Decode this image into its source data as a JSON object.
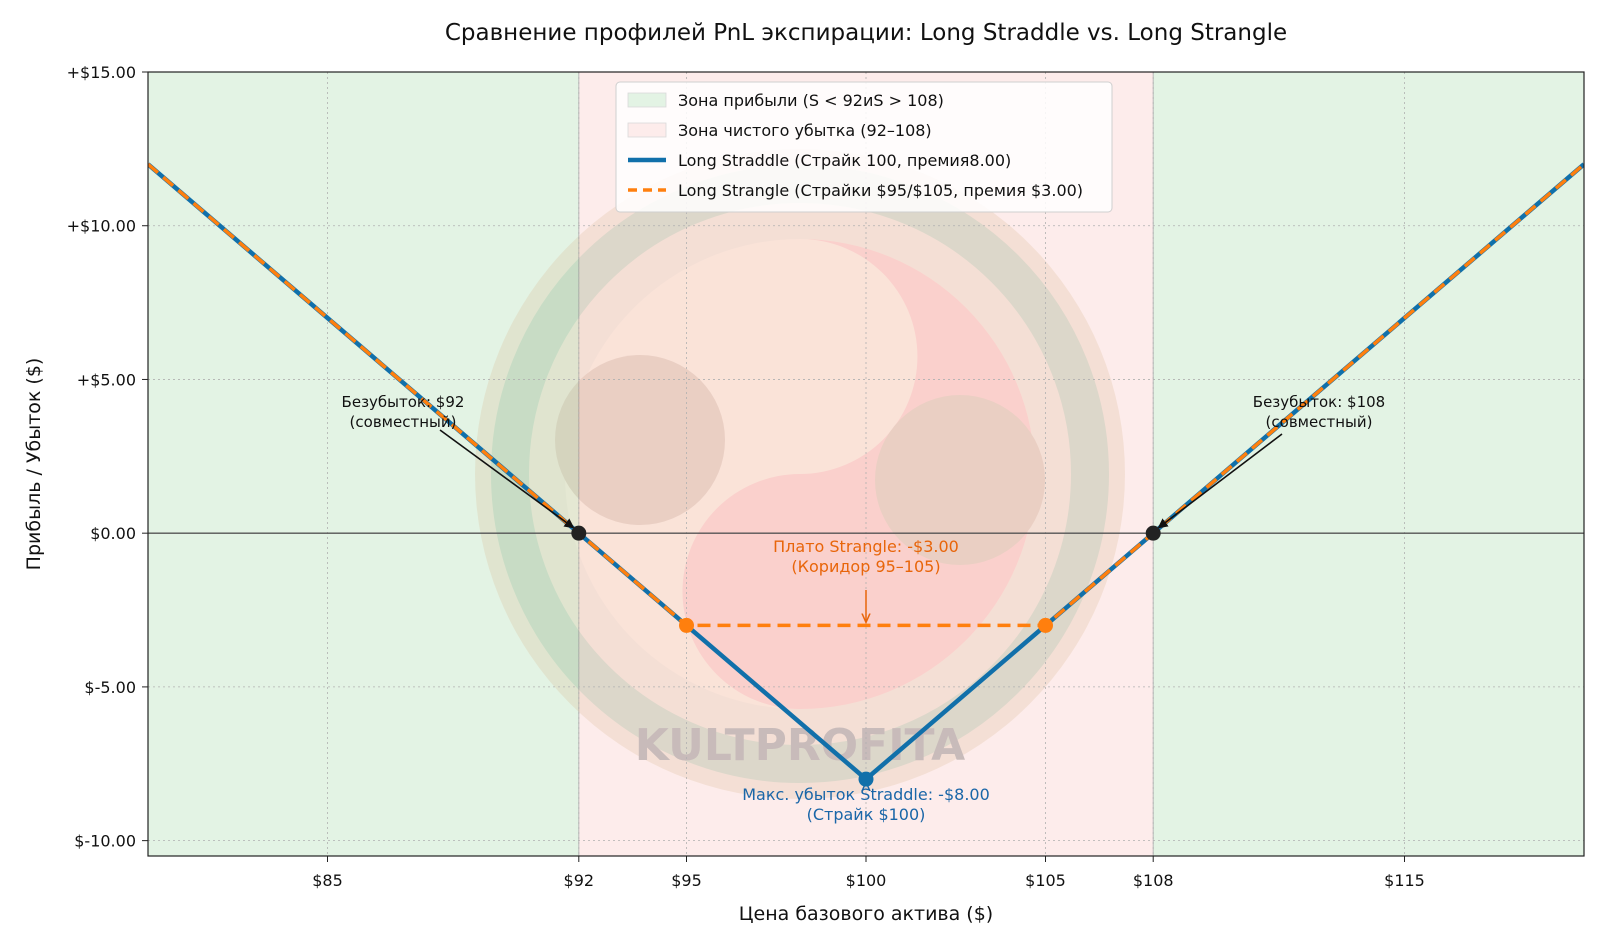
{
  "chart_data": {
    "type": "line",
    "title": "Сравнение профилей PnL экспирации: Long Straddle vs. Long Strangle",
    "xlabel": "Цена базового актива ($)",
    "ylabel": "Прибыль / Убыток ($)",
    "xlim": [
      80,
      120
    ],
    "ylim": [
      -10.5,
      15
    ],
    "x_ticks": [
      85,
      92,
      95,
      100,
      105,
      108,
      115
    ],
    "x_tick_labels": [
      "$85",
      "$92",
      "$95",
      "$100",
      "$105",
      "$108",
      "$115"
    ],
    "y_ticks": [
      -10,
      -5,
      0,
      5,
      10,
      15
    ],
    "y_tick_labels": [
      "$-10.00",
      "$-5.00",
      "$0.00",
      "+$5.00",
      "+$10.00",
      "+$15.00"
    ],
    "grid": true,
    "legend_position": "top-center",
    "zones": [
      {
        "name": "Зона прибыли (S < 92иS > 108)",
        "ranges": [
          [
            80,
            92
          ],
          [
            108,
            120
          ]
        ],
        "color": "#e3f3e4"
      },
      {
        "name": "Зона чистого убытка (92–108)",
        "ranges": [
          [
            92,
            108
          ]
        ],
        "color": "#fdeceb"
      }
    ],
    "series": [
      {
        "name": "Long Straddle (Страйк 100, премия8.00)",
        "color": "#1170aa",
        "style": "solid",
        "x": [
          80,
          92,
          95,
          100,
          105,
          108,
          120
        ],
        "y": [
          12,
          0,
          -3,
          -8,
          -3,
          0,
          12
        ]
      },
      {
        "name": "Long Strangle (Страйки $95/$105, премия $3.00)",
        "color": "#ff7f0e",
        "style": "dashed",
        "x": [
          80,
          92,
          95,
          105,
          108,
          120
        ],
        "y": [
          12,
          0,
          -3,
          -3,
          0,
          12
        ]
      }
    ],
    "markers": [
      {
        "x": 92,
        "y": 0,
        "color": "#222222"
      },
      {
        "x": 108,
        "y": 0,
        "color": "#222222"
      },
      {
        "x": 95,
        "y": -3,
        "color": "#ff7f0e"
      },
      {
        "x": 105,
        "y": -3,
        "color": "#ff7f0e"
      },
      {
        "x": 100,
        "y": -8,
        "color": "#1170aa"
      }
    ],
    "annotations": [
      {
        "lines": [
          "Безубыток: $92",
          "(совместный)"
        ],
        "x": 92,
        "y": 0,
        "color": "#111111"
      },
      {
        "lines": [
          "Безубыток: $108",
          "(совместный)"
        ],
        "x": 108,
        "y": 0,
        "color": "#111111"
      },
      {
        "lines": [
          "Плато Strangle: -$3.00",
          "(Коридор 95–105)"
        ],
        "x": 100,
        "y": -3,
        "color": "#e8650a"
      },
      {
        "lines": [
          "Макс. убыток Straddle: -$8.00",
          "(Страйк $100)"
        ],
        "x": 100,
        "y": -8,
        "color": "#1a66a8"
      }
    ],
    "watermark": "KULTPROFITA"
  }
}
